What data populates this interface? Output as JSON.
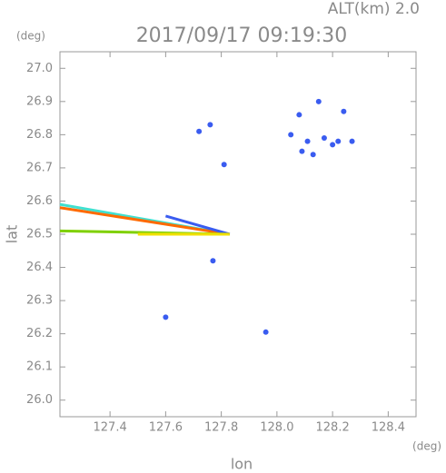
{
  "chart_data": {
    "type": "scatter",
    "title": "2017/09/17 09:19:30",
    "subtitle": "ALT(km) 2.0",
    "y_unit": "(deg)",
    "x_unit": "(deg)",
    "x_label": "lon",
    "y_label": "lat",
    "xlim": [
      127.22,
      128.5
    ],
    "ylim": [
      25.95,
      27.05
    ],
    "xticks": [
      127.4,
      127.6,
      127.8,
      {
        "value": 128,
        "label": "128.0"
      },
      128.2,
      128.4
    ],
    "yticks": [
      {
        "value": 26,
        "label": "26.0"
      },
      26.1,
      26.2,
      26.3,
      26.4,
      26.5,
      26.6,
      26.7,
      26.8,
      26.9,
      {
        "value": 27,
        "label": "27.0"
      }
    ],
    "series": [
      {
        "kind": "line",
        "color": "#40e0d0",
        "x": [
          127.22,
          127.83
        ],
        "y": [
          26.59,
          26.5
        ]
      },
      {
        "kind": "line",
        "color": "#ff6a00",
        "x": [
          127.22,
          127.83
        ],
        "y": [
          26.58,
          26.5
        ]
      },
      {
        "kind": "line",
        "color": "#3a5cf0",
        "x": [
          127.6,
          127.83
        ],
        "y": [
          26.555,
          26.5
        ]
      },
      {
        "kind": "line",
        "color": "#7fd000",
        "x": [
          127.22,
          127.83
        ],
        "y": [
          26.51,
          26.5
        ]
      },
      {
        "kind": "line",
        "color": "#f0e000",
        "x": [
          127.5,
          127.83
        ],
        "y": [
          26.5,
          26.5
        ]
      },
      {
        "kind": "points",
        "color": "#3a5cf0",
        "x": [
          127.72,
          127.76,
          127.81,
          127.77,
          127.6,
          127.96,
          128.08,
          128.05,
          128.11,
          128.17,
          128.22,
          128.24,
          128.27,
          128.15,
          128.13,
          128.09,
          128.2
        ],
        "y": [
          26.81,
          26.83,
          26.71,
          26.42,
          26.25,
          26.205,
          26.86,
          26.8,
          26.78,
          26.79,
          26.78,
          26.87,
          26.78,
          26.9,
          26.74,
          26.75,
          26.77
        ]
      }
    ]
  }
}
